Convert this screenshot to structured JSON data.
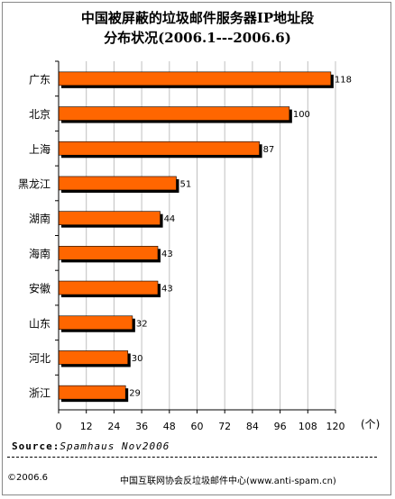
{
  "title_line1": "中国被屏蔽的垃圾邮件服务器IP地址段",
  "title_line2": "分布状况(2006.1---2006.6)",
  "unit": "(个)",
  "source_label": "Source:",
  "source_text": "Spamhaus Nov2006",
  "copyright": "©2006.6",
  "organization": "中国互联网协会反垃圾邮件中心(www.anti-spam.cn)",
  "colors": {
    "bar": "#ff6600",
    "bar_shadow": "#000000",
    "grid": "#c0c0c0",
    "axis": "#000000"
  },
  "chart_data": {
    "type": "bar",
    "orientation": "horizontal",
    "title": "中国被屏蔽的垃圾邮件服务器IP地址段 分布状况(2006.1---2006.6)",
    "categories": [
      "广东",
      "北京",
      "上海",
      "黑龙江",
      "湖南",
      "海南",
      "安徽",
      "山东",
      "河北",
      "浙江"
    ],
    "values": [
      118,
      100,
      87,
      51,
      44,
      43,
      43,
      32,
      30,
      29
    ],
    "xlim": [
      0,
      120
    ],
    "xticks": [
      0,
      12,
      24,
      36,
      48,
      60,
      72,
      84,
      96,
      108,
      120
    ],
    "xlabel": "(个)",
    "ylabel": "",
    "grid": true,
    "data_labels": true
  }
}
